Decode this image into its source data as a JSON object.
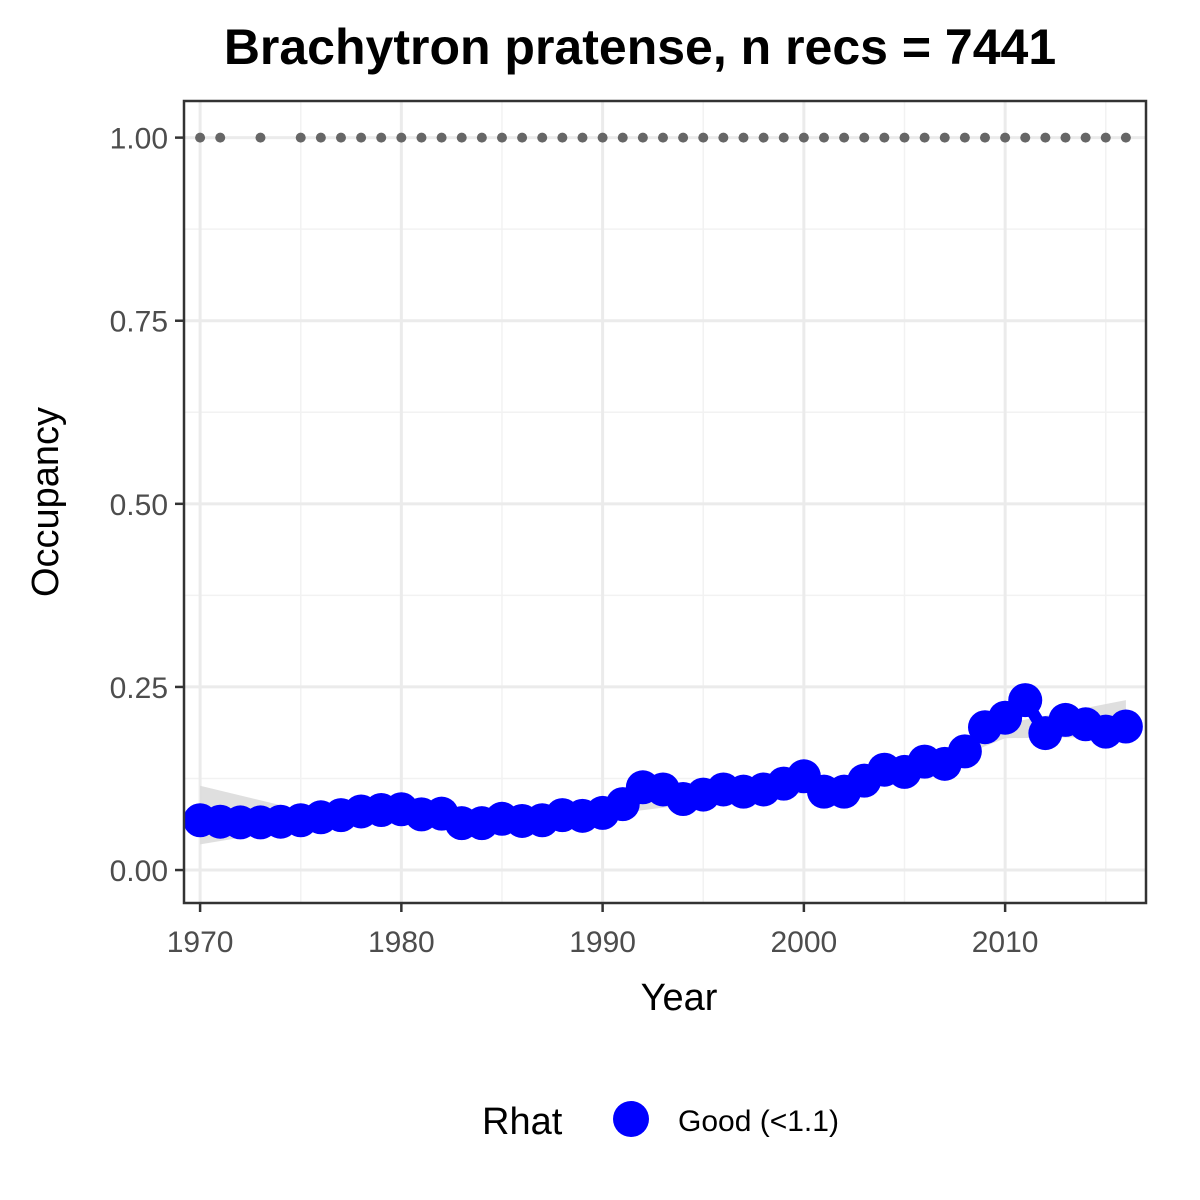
{
  "chart_data": {
    "type": "line",
    "title": "Brachytron pratense, n recs = 7441",
    "xlabel": "Year",
    "ylabel": "Occupancy",
    "xlim": [
      1969.2,
      2017.0
    ],
    "ylim": [
      -0.045,
      1.05
    ],
    "x_ticks": [
      1970,
      1980,
      1990,
      2000,
      2010
    ],
    "x_tick_labels": [
      "1970",
      "1980",
      "1990",
      "2000",
      "2010"
    ],
    "y_ticks": [
      0.0,
      0.25,
      0.5,
      0.75,
      1.0
    ],
    "y_tick_labels": [
      "0.00",
      "0.25",
      "0.50",
      "0.75",
      "1.00"
    ],
    "grid": true,
    "legend": {
      "title": "Rhat",
      "position": "bottom",
      "entries": [
        {
          "label": "Good (<1.1)",
          "color": "#0000ff"
        }
      ]
    },
    "colors": {
      "estimate": "#0000ff",
      "ribbon": "#d9d9d9",
      "record_years": "#666666"
    },
    "series": [
      {
        "role": "occupancy-estimate",
        "x": [
          1970,
          1971,
          1972,
          1973,
          1974,
          1975,
          1976,
          1977,
          1978,
          1979,
          1980,
          1981,
          1982,
          1983,
          1984,
          1985,
          1986,
          1987,
          1988,
          1989,
          1990,
          1991,
          1992,
          1993,
          1994,
          1995,
          1996,
          1997,
          1998,
          1999,
          2000,
          2001,
          2002,
          2003,
          2004,
          2005,
          2006,
          2007,
          2008,
          2009,
          2010,
          2011,
          2012,
          2013,
          2014,
          2015,
          2016
        ],
        "y": [
          0.068,
          0.066,
          0.065,
          0.065,
          0.066,
          0.068,
          0.072,
          0.075,
          0.08,
          0.082,
          0.083,
          0.076,
          0.077,
          0.064,
          0.064,
          0.07,
          0.067,
          0.068,
          0.075,
          0.074,
          0.078,
          0.09,
          0.113,
          0.11,
          0.097,
          0.103,
          0.11,
          0.107,
          0.11,
          0.118,
          0.128,
          0.107,
          0.107,
          0.122,
          0.137,
          0.134,
          0.148,
          0.145,
          0.162,
          0.195,
          0.208,
          0.232,
          0.187,
          0.205,
          0.199,
          0.189,
          0.196
        ]
      },
      {
        "role": "confidence-ribbon",
        "x": [
          1970,
          1975,
          1980,
          1985,
          1990,
          1995,
          2000,
          2005,
          2010,
          2016
        ],
        "lower": [
          0.035,
          0.058,
          0.068,
          0.062,
          0.075,
          0.092,
          0.105,
          0.125,
          0.18,
          0.182
        ],
        "upper": [
          0.115,
          0.082,
          0.088,
          0.078,
          0.085,
          0.105,
          0.12,
          0.14,
          0.2,
          0.232
        ]
      },
      {
        "role": "record-years",
        "x": [
          1970,
          1971,
          1973,
          1975,
          1976,
          1977,
          1978,
          1979,
          1980,
          1981,
          1982,
          1983,
          1984,
          1985,
          1986,
          1987,
          1988,
          1989,
          1990,
          1991,
          1992,
          1993,
          1994,
          1995,
          1996,
          1997,
          1998,
          1999,
          2000,
          2001,
          2002,
          2003,
          2004,
          2005,
          2006,
          2007,
          2008,
          2009,
          2010,
          2011,
          2012,
          2013,
          2014,
          2015,
          2016
        ],
        "y": 1.0
      }
    ]
  }
}
